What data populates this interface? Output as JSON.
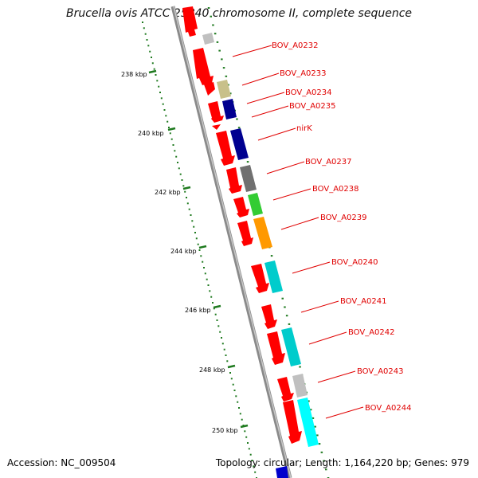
{
  "title": "Brucella ovis ATCC 25840 chromosome II, complete sequence",
  "accession": "Accession: NC_009504",
  "summary": "Topology: circular; Length: 1,164,220 bp; Genes: 979",
  "scale_labels": [
    "238 kbp",
    "240 kbp",
    "242 kbp",
    "244 kbp",
    "246 kbp",
    "248 kbp",
    "250 kbp"
  ],
  "gene_labels": [
    "BOV_A0232",
    "BOV_A0233",
    "BOV_A0234",
    "BOV_A0235",
    "nirK",
    "BOV_A0237",
    "BOV_A0238",
    "BOV_A0239",
    "BOV_A0240",
    "BOV_A0241",
    "BOV_A0242",
    "BOV_A0243",
    "BOV_A0244"
  ],
  "colors": {
    "cds": "#ff0000",
    "tick": "#1f7a1f",
    "label": "#e00000",
    "backbone": "#8a8a8a",
    "feature_colors": [
      "#c0c0c0",
      "#c8c08a",
      "#000090",
      "#000090",
      "#707070",
      "#33cc33",
      "#ff9900",
      "#00cccc",
      "#00cccc",
      "#c0c0c0",
      "#00ffff",
      "#0000cc"
    ]
  }
}
